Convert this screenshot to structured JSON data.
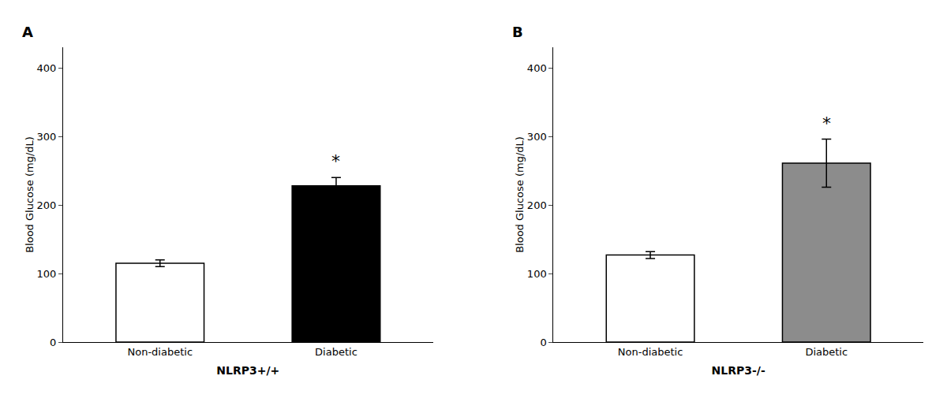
{
  "chart_data": [
    {
      "type": "bar",
      "title": "A",
      "categories": [
        "Non-diabetic",
        "Diabetic"
      ],
      "values": [
        115,
        228
      ],
      "errors": [
        5,
        12
      ],
      "colors": [
        "#ffffff",
        "#000000"
      ],
      "xlabel": "NLRP3+/+",
      "ylabel": "Blood Glucose (mg/dL)",
      "ylim": [
        0,
        430
      ],
      "yticks": [
        0,
        100,
        200,
        300,
        400
      ],
      "grid": false,
      "annotations": [
        {
          "text": "*",
          "category": "Diabetic"
        }
      ]
    },
    {
      "type": "bar",
      "title": "B",
      "categories": [
        "Non-diabetic",
        "Diabetic"
      ],
      "values": [
        127,
        261
      ],
      "errors": [
        5,
        35
      ],
      "colors": [
        "#ffffff",
        "#8c8c8c"
      ],
      "xlabel": "NLRP3-/-",
      "ylabel": "Blood Glucose (mg/dL)",
      "ylim": [
        0,
        430
      ],
      "yticks": [
        0,
        100,
        200,
        300,
        400
      ],
      "grid": false,
      "annotations": [
        {
          "text": "*",
          "category": "Diabetic"
        }
      ]
    }
  ]
}
